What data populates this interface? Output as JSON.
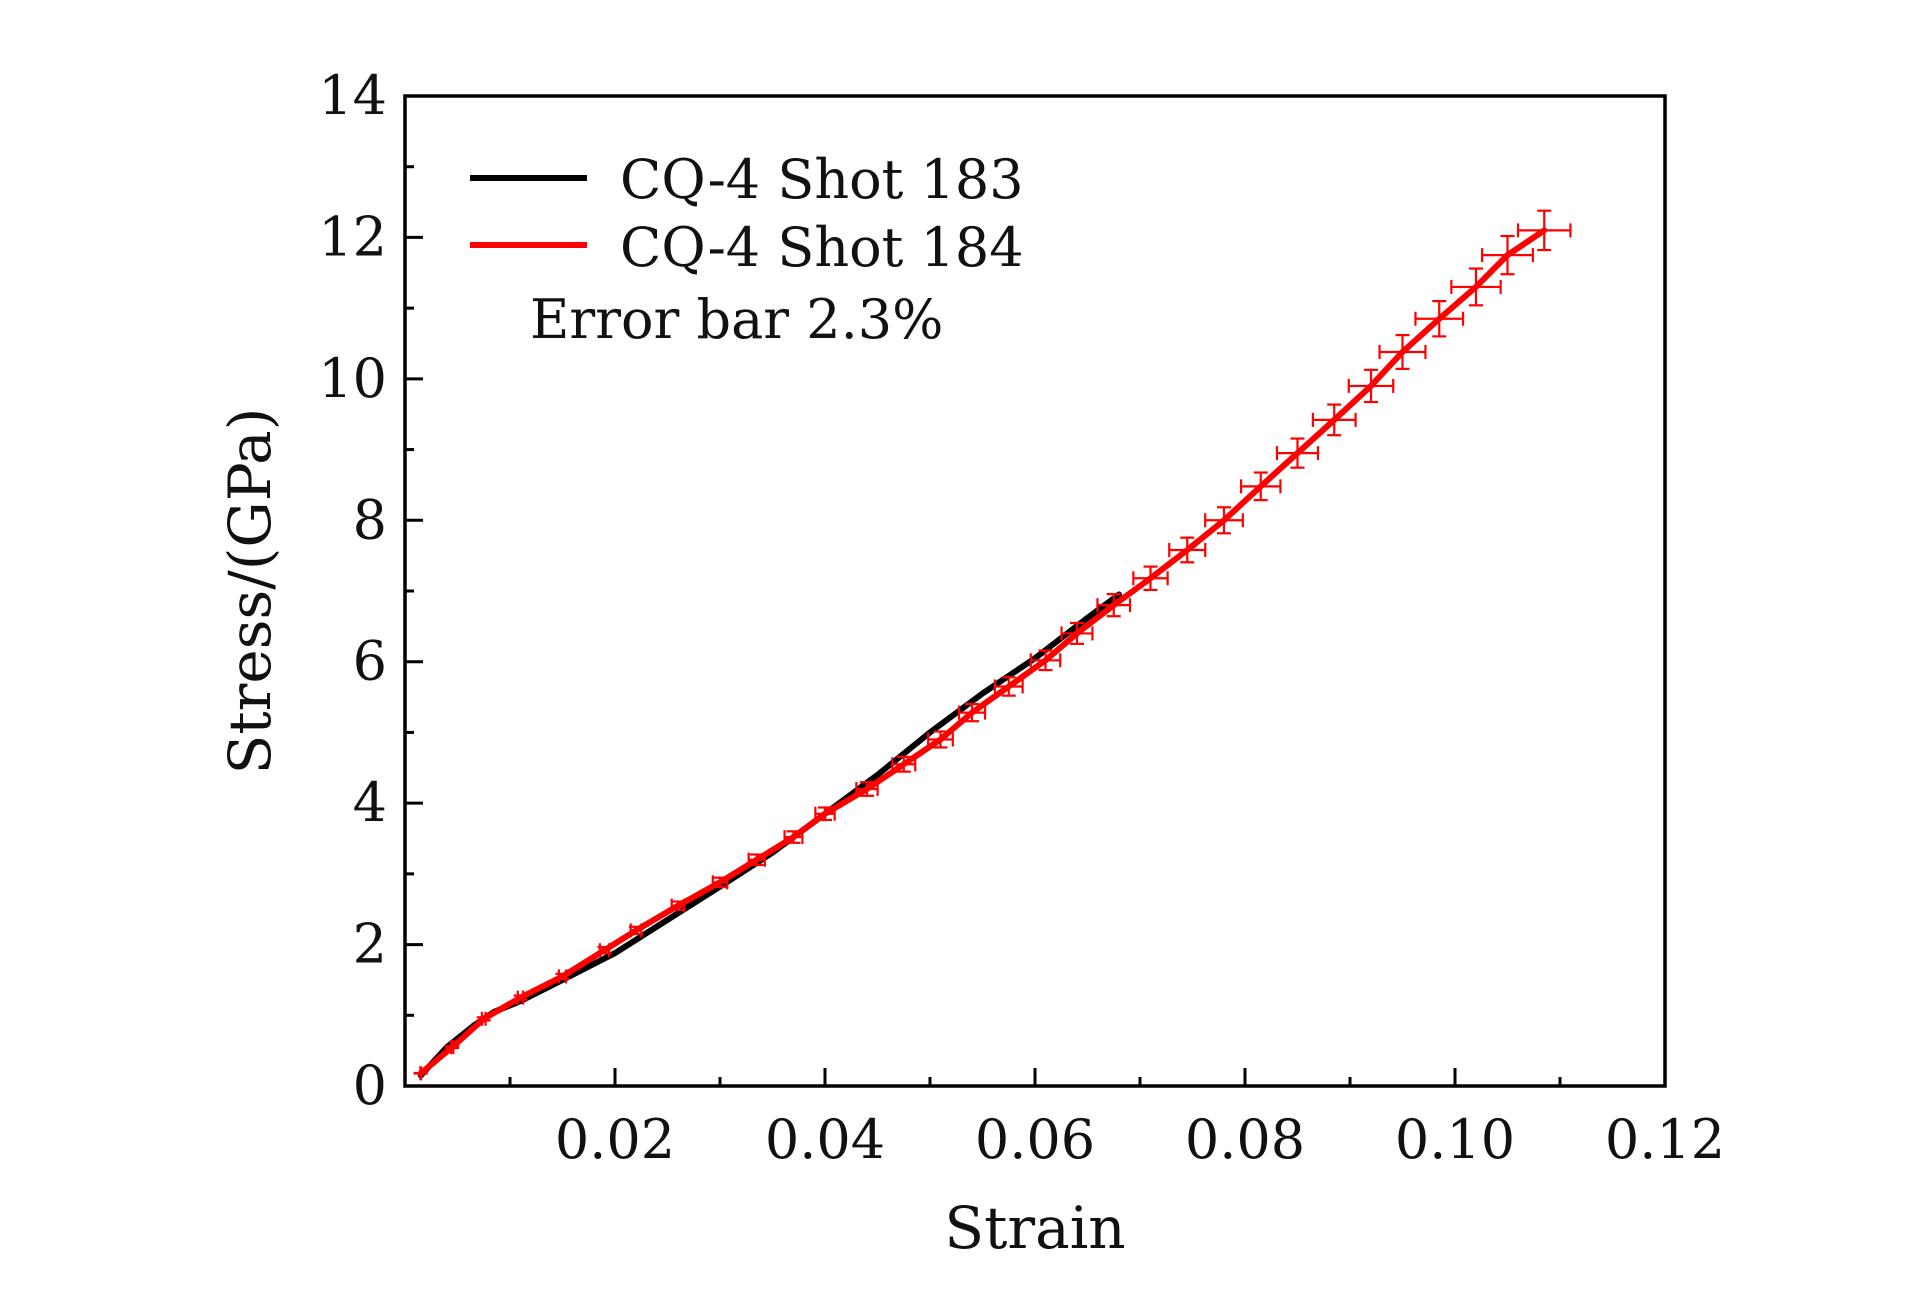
{
  "chart_data": {
    "type": "line",
    "title": "",
    "xlabel": "Strain",
    "ylabel": "Stress/(GPa)",
    "xlim": [
      0.0,
      0.12
    ],
    "ylim": [
      0,
      14
    ],
    "xticks": [
      0.02,
      0.04,
      0.06,
      0.08,
      0.1,
      0.12
    ],
    "xtick_labels": [
      "0.02",
      "0.04",
      "0.06",
      "0.08",
      "0.10",
      "0.12"
    ],
    "yticks": [
      0,
      2,
      4,
      6,
      8,
      10,
      12,
      14
    ],
    "ytick_labels": [
      "0",
      "2",
      "4",
      "6",
      "8",
      "10",
      "12",
      "14"
    ],
    "grid": false,
    "legend_position": "top-left",
    "annotation": "Error bar 2.3%",
    "error_fraction": 0.023,
    "series": [
      {
        "name": "CQ-4 Shot 183",
        "color": "#000000",
        "x": [
          0.0015,
          0.004,
          0.0065,
          0.0085,
          0.011,
          0.015,
          0.02,
          0.025,
          0.03,
          0.035,
          0.04,
          0.045,
          0.05,
          0.055,
          0.06,
          0.065,
          0.068
        ],
        "y": [
          0.15,
          0.55,
          0.85,
          1.05,
          1.2,
          1.5,
          1.88,
          2.35,
          2.82,
          3.3,
          3.85,
          4.4,
          5.0,
          5.55,
          6.05,
          6.62,
          6.95
        ]
      },
      {
        "name": "CQ-4 Shot 184",
        "color": "#ff0000",
        "x": [
          0.0015,
          0.0045,
          0.0075,
          0.011,
          0.015,
          0.019,
          0.022,
          0.026,
          0.03,
          0.0335,
          0.037,
          0.04,
          0.044,
          0.0475,
          0.051,
          0.054,
          0.0575,
          0.061,
          0.064,
          0.0675,
          0.071,
          0.0745,
          0.078,
          0.0815,
          0.085,
          0.0885,
          0.092,
          0.095,
          0.0985,
          0.102,
          0.105,
          0.1085
        ],
        "y": [
          0.18,
          0.55,
          0.95,
          1.25,
          1.55,
          1.92,
          2.2,
          2.55,
          2.88,
          3.2,
          3.52,
          3.85,
          4.2,
          4.55,
          4.9,
          5.28,
          5.65,
          6.02,
          6.4,
          6.8,
          7.18,
          7.58,
          8.0,
          8.48,
          8.95,
          9.42,
          9.9,
          10.38,
          10.85,
          11.3,
          11.75,
          12.1
        ]
      }
    ]
  }
}
